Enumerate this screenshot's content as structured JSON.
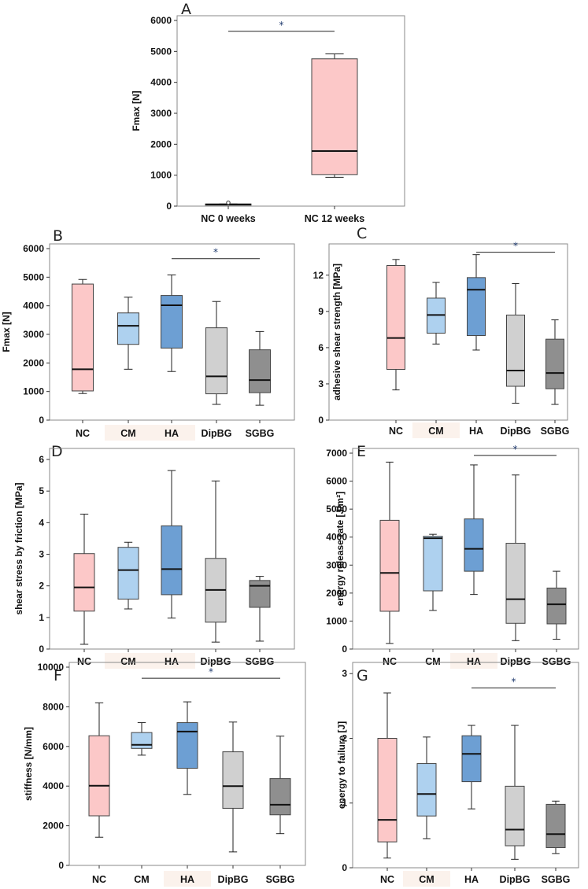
{
  "colors": {
    "NC": "#fcc8c8",
    "CM": "#aed1ef",
    "HA": "#6d9fd3",
    "DipBG": "#d0d0d0",
    "SGBG": "#8f8f8f",
    "NC 0 weeks": "#fcc8c8",
    "NC 12 weeks": "#fcc8c8",
    "star": "#1f3a6e"
  },
  "chart_data": [
    {
      "panel": "A",
      "type": "box",
      "title": "",
      "ylabel": "Fmax [N]",
      "ylim": [
        0,
        6000
      ],
      "yticks": [
        0,
        1000,
        2000,
        3000,
        4000,
        5000,
        6000
      ],
      "categories": [
        "NC 0 weeks",
        "NC 12 weeks"
      ],
      "boxes": [
        {
          "min": 40,
          "q1": 40,
          "median": 55,
          "q3": 70,
          "max": 70,
          "outliers": [
            110
          ]
        },
        {
          "min": 930,
          "q1": 1020,
          "median": 1780,
          "q3": 4760,
          "max": 4920,
          "outliers": []
        }
      ],
      "significance": [
        {
          "from": 0,
          "to": 1,
          "y": 5650,
          "label": "*"
        }
      ]
    },
    {
      "panel": "B",
      "type": "box",
      "ylabel": "Fmax [N]",
      "ylim": [
        0,
        6000
      ],
      "yticks": [
        0,
        1000,
        2000,
        3000,
        4000,
        5000,
        6000
      ],
      "categories": [
        "NC",
        "CM",
        "HA",
        "DipBG",
        "SGBG"
      ],
      "boxes": [
        {
          "min": 930,
          "q1": 1020,
          "median": 1780,
          "q3": 4760,
          "max": 4920
        },
        {
          "min": 1780,
          "q1": 2650,
          "median": 3300,
          "q3": 3750,
          "max": 4300
        },
        {
          "min": 1700,
          "q1": 2520,
          "median": 4020,
          "q3": 4360,
          "max": 5080
        },
        {
          "min": 550,
          "q1": 920,
          "median": 1530,
          "q3": 3230,
          "max": 4150
        },
        {
          "min": 520,
          "q1": 960,
          "median": 1400,
          "q3": 2460,
          "max": 3100
        }
      ],
      "significance": [
        {
          "from": 2,
          "to": 4,
          "y": 5650,
          "label": "*"
        }
      ]
    },
    {
      "panel": "C",
      "type": "box",
      "ylabel": "adhesive shear strength [MPa]",
      "ylim": [
        0,
        14.2
      ],
      "yticks": [
        0,
        3,
        6,
        9,
        12
      ],
      "categories": [
        "NC",
        "CM",
        "HA",
        "DipBG",
        "SGBG"
      ],
      "boxes": [
        {
          "min": 2.5,
          "q1": 4.2,
          "median": 6.8,
          "q3": 12.8,
          "max": 13.3
        },
        {
          "min": 6.3,
          "q1": 7.2,
          "median": 8.7,
          "q3": 10.1,
          "max": 11.4
        },
        {
          "min": 5.8,
          "q1": 7.0,
          "median": 10.8,
          "q3": 11.8,
          "max": 13.7
        },
        {
          "min": 1.4,
          "q1": 2.8,
          "median": 4.1,
          "q3": 8.7,
          "max": 11.3
        },
        {
          "min": 1.3,
          "q1": 2.6,
          "median": 3.9,
          "q3": 6.7,
          "max": 8.3
        }
      ],
      "significance": [
        {
          "from": 2,
          "to": 4,
          "y": 13.9,
          "label": "*"
        }
      ]
    },
    {
      "panel": "D",
      "type": "box",
      "ylabel": "shear stress by friction [MPa]",
      "ylim": [
        0,
        6.2
      ],
      "yticks": [
        0,
        1,
        2,
        3,
        4,
        5,
        6
      ],
      "categories": [
        "NC",
        "CM",
        "HA",
        "DipBG",
        "SGBG"
      ],
      "boxes": [
        {
          "min": 0.15,
          "q1": 1.2,
          "median": 1.95,
          "q3": 3.02,
          "max": 4.27
        },
        {
          "min": 1.27,
          "q1": 1.58,
          "median": 2.5,
          "q3": 3.22,
          "max": 3.38
        },
        {
          "min": 0.98,
          "q1": 1.72,
          "median": 2.53,
          "q3": 3.9,
          "max": 5.65
        },
        {
          "min": 0.22,
          "q1": 0.85,
          "median": 1.87,
          "q3": 2.87,
          "max": 5.32
        },
        {
          "min": 0.25,
          "q1": 1.32,
          "median": 2.0,
          "q3": 2.17,
          "max": 2.3
        }
      ],
      "significance": []
    },
    {
      "panel": "E",
      "type": "box",
      "ylabel": "energy release rate [J/m²]",
      "ylim": [
        0,
        7000
      ],
      "yticks": [
        0,
        1000,
        2000,
        3000,
        4000,
        5000,
        6000,
        7000
      ],
      "categories": [
        "NC",
        "CM",
        "HA",
        "DipBG",
        "SGBG"
      ],
      "boxes": [
        {
          "min": 200,
          "q1": 1350,
          "median": 2720,
          "q3": 4600,
          "max": 6680
        },
        {
          "min": 1380,
          "q1": 2080,
          "median": 3960,
          "q3": 4030,
          "max": 4100
        },
        {
          "min": 1950,
          "q1": 2780,
          "median": 3580,
          "q3": 4650,
          "max": 6580
        },
        {
          "min": 300,
          "q1": 920,
          "median": 1780,
          "q3": 3780,
          "max": 6220
        },
        {
          "min": 350,
          "q1": 900,
          "median": 1600,
          "q3": 2180,
          "max": 2780
        }
      ],
      "significance": [
        {
          "from": 2,
          "to": 4,
          "y": 6920,
          "label": "*"
        }
      ]
    },
    {
      "panel": "F",
      "type": "box",
      "ylabel": "stiffness [N/mm]",
      "ylim": [
        0,
        10000
      ],
      "yticks": [
        0,
        2000,
        4000,
        6000,
        8000,
        10000
      ],
      "categories": [
        "NC",
        "CM",
        "HA",
        "DipBG",
        "SGBG"
      ],
      "boxes": [
        {
          "min": 1420,
          "q1": 2500,
          "median": 4020,
          "q3": 6540,
          "max": 8200
        },
        {
          "min": 5560,
          "q1": 5900,
          "median": 6080,
          "q3": 6700,
          "max": 7200
        },
        {
          "min": 3580,
          "q1": 4900,
          "median": 6750,
          "q3": 7200,
          "max": 8250
        },
        {
          "min": 680,
          "q1": 2880,
          "median": 4000,
          "q3": 5730,
          "max": 7230
        },
        {
          "min": 1600,
          "q1": 2550,
          "median": 3060,
          "q3": 4380,
          "max": 6520
        }
      ],
      "significance": [
        {
          "from": 1,
          "to": 4,
          "y": 9440,
          "label": "*"
        }
      ]
    },
    {
      "panel": "G",
      "type": "box",
      "ylabel": "energy to failure [J]",
      "ylim": [
        0,
        3.1
      ],
      "yticks": [
        0,
        1,
        2,
        3
      ],
      "categories": [
        "NC",
        "CM",
        "HA",
        "DipBG",
        "SGBG"
      ],
      "boxes": [
        {
          "min": 0.15,
          "q1": 0.4,
          "median": 0.74,
          "q3": 2.0,
          "max": 2.7
        },
        {
          "min": 0.45,
          "q1": 0.8,
          "median": 1.14,
          "q3": 1.61,
          "max": 2.02
        },
        {
          "min": 0.91,
          "q1": 1.33,
          "median": 1.76,
          "q3": 2.04,
          "max": 2.2
        },
        {
          "min": 0.13,
          "q1": 0.34,
          "median": 0.59,
          "q3": 1.26,
          "max": 2.2
        },
        {
          "min": 0.22,
          "q1": 0.31,
          "median": 0.52,
          "q3": 0.98,
          "max": 1.03
        }
      ],
      "significance": [
        {
          "from": 2,
          "to": 4,
          "y": 2.78,
          "label": "*"
        }
      ]
    }
  ]
}
